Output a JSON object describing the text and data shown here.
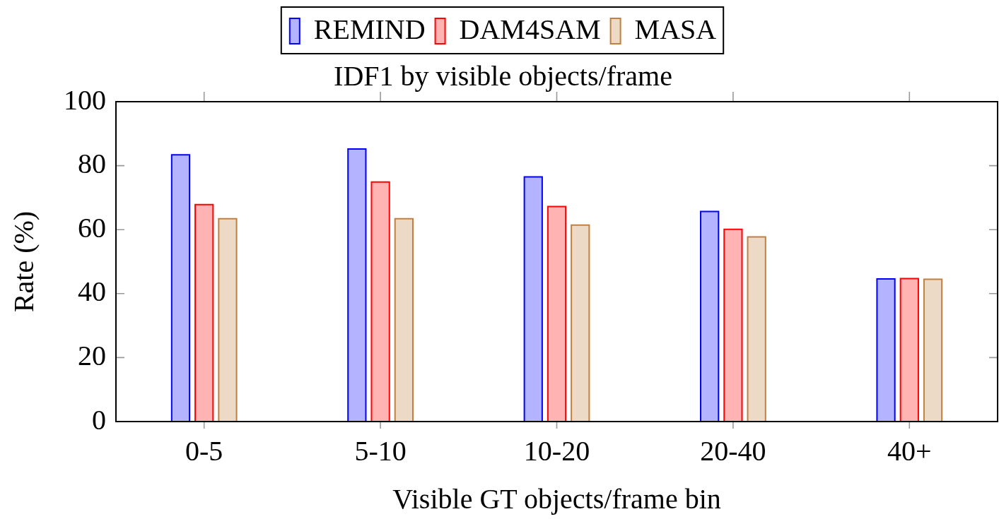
{
  "chart_data": {
    "type": "bar",
    "title": "IDF1 by visible objects/frame",
    "xlabel": "Visible GT objects/frame bin",
    "ylabel": "Rate (%)",
    "categories": [
      "0-5",
      "5-10",
      "10-20",
      "20-40",
      "40+"
    ],
    "series": [
      {
        "name": "REMIND",
        "color": "#b3b3ff",
        "values": [
          83.4,
          85.2,
          76.5,
          65.7,
          44.6
        ]
      },
      {
        "name": "DAM4SAM",
        "color": "#ffb3b3",
        "values": [
          67.8,
          74.9,
          67.2,
          60.1,
          44.7
        ]
      },
      {
        "name": "MASA",
        "color": "#ecd9c6",
        "values": [
          63.4,
          63.4,
          61.4,
          57.7,
          44.5
        ]
      }
    ],
    "ylim": [
      0,
      100
    ],
    "yticks": [
      0,
      20,
      40,
      60,
      80,
      100
    ],
    "grid": false,
    "legend": "top"
  }
}
